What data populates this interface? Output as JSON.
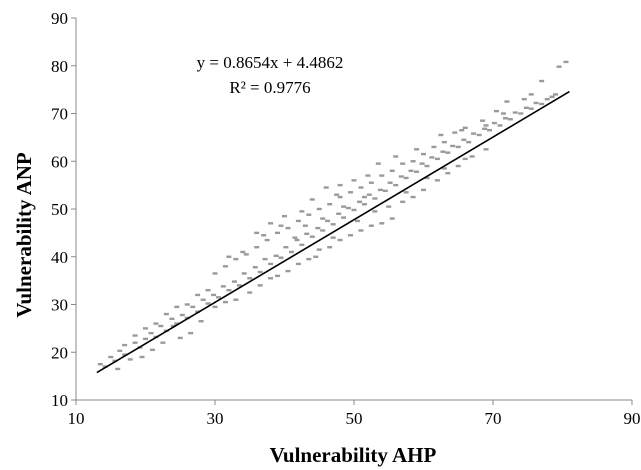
{
  "chart_data": {
    "type": "scatter",
    "title": "",
    "xlabel": "Vulnerability AHP",
    "ylabel": "Vulnerability ANP",
    "xlim": [
      10,
      90
    ],
    "ylim": [
      10,
      90
    ],
    "x_ticks": [
      10,
      30,
      50,
      70,
      90
    ],
    "y_ticks": [
      10,
      20,
      30,
      40,
      50,
      60,
      70,
      80,
      90
    ],
    "x_tick_labels": [
      "10",
      "30",
      "50",
      "70",
      "90"
    ],
    "y_tick_labels": [
      "10",
      "20",
      "30",
      "40",
      "50",
      "60",
      "70",
      "80",
      "90"
    ],
    "grid": false,
    "legend": "none",
    "point_color": "#9a9a9a",
    "trendline_color": "#000000",
    "trendline": {
      "slope": 0.8654,
      "intercept": 4.4862,
      "x_range": [
        13,
        81
      ]
    },
    "annotations": [
      "y = 0.8654x + 4.4862",
      "R² = 0.9776"
    ],
    "series": [
      {
        "points": [
          [
            13.5,
            17.5
          ],
          [
            14.2,
            17.0
          ],
          [
            15.0,
            19.0
          ],
          [
            15.6,
            18.2
          ],
          [
            16.3,
            20.3
          ],
          [
            17.0,
            19.5
          ],
          [
            17.8,
            18.5
          ],
          [
            18.5,
            22.0
          ],
          [
            19.2,
            21.0
          ],
          [
            20.0,
            22.8
          ],
          [
            20.8,
            24.0
          ],
          [
            21.5,
            23.2
          ],
          [
            22.2,
            25.5
          ],
          [
            23.0,
            24.5
          ],
          [
            23.8,
            27.0
          ],
          [
            24.5,
            26.0
          ],
          [
            25.3,
            27.8
          ],
          [
            26.0,
            27.2
          ],
          [
            26.8,
            29.5
          ],
          [
            27.5,
            28.5
          ],
          [
            28.3,
            31.0
          ],
          [
            29.0,
            30.2
          ],
          [
            29.8,
            32.0
          ],
          [
            30.5,
            31.5
          ],
          [
            31.2,
            33.8
          ],
          [
            32.0,
            33.0
          ],
          [
            32.8,
            34.8
          ],
          [
            33.5,
            34.0
          ],
          [
            34.2,
            36.5
          ],
          [
            35.0,
            35.5
          ],
          [
            35.8,
            37.8
          ],
          [
            36.5,
            36.8
          ],
          [
            37.2,
            39.5
          ],
          [
            38.0,
            38.5
          ],
          [
            38.8,
            40.2
          ],
          [
            39.5,
            39.8
          ],
          [
            40.2,
            42.0
          ],
          [
            41.0,
            41.0
          ],
          [
            41.8,
            43.5
          ],
          [
            42.5,
            42.5
          ],
          [
            43.2,
            44.8
          ],
          [
            44.0,
            44.2
          ],
          [
            44.8,
            46.0
          ],
          [
            45.5,
            45.5
          ],
          [
            46.2,
            47.5
          ],
          [
            47.0,
            46.8
          ],
          [
            47.8,
            49.0
          ],
          [
            48.5,
            48.2
          ],
          [
            49.2,
            50.2
          ],
          [
            50.0,
            49.8
          ],
          [
            50.8,
            51.5
          ],
          [
            51.5,
            51.0
          ],
          [
            52.2,
            53.0
          ],
          [
            53.0,
            52.2
          ],
          [
            53.8,
            54.0
          ],
          [
            54.5,
            53.8
          ],
          [
            55.2,
            55.5
          ],
          [
            56.0,
            55.0
          ],
          [
            56.8,
            56.8
          ],
          [
            57.5,
            56.5
          ],
          [
            58.2,
            58.0
          ],
          [
            59.0,
            57.8
          ],
          [
            59.8,
            59.5
          ],
          [
            60.5,
            59.0
          ],
          [
            61.2,
            60.8
          ],
          [
            62.0,
            60.5
          ],
          [
            62.8,
            62.0
          ],
          [
            63.5,
            61.8
          ],
          [
            64.2,
            63.2
          ],
          [
            65.0,
            63.0
          ],
          [
            65.8,
            64.5
          ],
          [
            66.5,
            64.0
          ],
          [
            67.2,
            65.8
          ],
          [
            68.0,
            65.5
          ],
          [
            68.8,
            66.8
          ],
          [
            69.5,
            66.5
          ],
          [
            70.2,
            68.0
          ],
          [
            71.0,
            67.5
          ],
          [
            71.8,
            69.0
          ],
          [
            72.5,
            68.8
          ],
          [
            73.2,
            70.2
          ],
          [
            74.0,
            70.0
          ],
          [
            74.8,
            71.2
          ],
          [
            75.5,
            71.0
          ],
          [
            76.2,
            72.2
          ],
          [
            77.0,
            72.0
          ],
          [
            77.8,
            73.0
          ],
          [
            78.5,
            73.5
          ],
          [
            79.0,
            74.0
          ],
          [
            80.5,
            80.8
          ],
          [
            79.5,
            79.8
          ],
          [
            77.0,
            76.8
          ],
          [
            75.5,
            74.0
          ],
          [
            72.0,
            72.5
          ],
          [
            70.5,
            70.5
          ],
          [
            68.5,
            68.5
          ],
          [
            66.0,
            67.0
          ],
          [
            64.5,
            66.0
          ],
          [
            63.0,
            64.0
          ],
          [
            61.5,
            63.0
          ],
          [
            60.0,
            61.5
          ],
          [
            58.5,
            60.0
          ],
          [
            57.0,
            59.5
          ],
          [
            55.5,
            58.0
          ],
          [
            54.0,
            57.0
          ],
          [
            52.5,
            55.5
          ],
          [
            51.0,
            54.5
          ],
          [
            49.5,
            53.5
          ],
          [
            48.0,
            52.5
          ],
          [
            46.5,
            51.0
          ],
          [
            45.0,
            50.0
          ],
          [
            43.5,
            48.8
          ],
          [
            42.0,
            47.5
          ],
          [
            40.5,
            46.0
          ],
          [
            39.0,
            45.0
          ],
          [
            37.5,
            43.5
          ],
          [
            36.0,
            42.0
          ],
          [
            34.5,
            40.5
          ],
          [
            33.0,
            39.5
          ],
          [
            31.5,
            38.0
          ],
          [
            30.0,
            36.5
          ],
          [
            29.0,
            33.0
          ],
          [
            27.5,
            32.0
          ],
          [
            26.0,
            30.0
          ],
          [
            24.5,
            29.5
          ],
          [
            23.0,
            28.0
          ],
          [
            21.5,
            26.0
          ],
          [
            20.0,
            25.0
          ],
          [
            18.5,
            23.5
          ],
          [
            17.0,
            21.5
          ],
          [
            39.0,
            36.0
          ],
          [
            40.5,
            37.0
          ],
          [
            42.0,
            38.5
          ],
          [
            43.5,
            39.5
          ],
          [
            45.0,
            41.5
          ],
          [
            46.5,
            42.0
          ],
          [
            48.0,
            43.5
          ],
          [
            49.5,
            44.5
          ],
          [
            51.0,
            45.5
          ],
          [
            52.5,
            46.5
          ],
          [
            54.0,
            47.0
          ],
          [
            55.5,
            48.0
          ],
          [
            57.0,
            51.5
          ],
          [
            58.5,
            52.5
          ],
          [
            60.0,
            54.0
          ],
          [
            62.0,
            56.0
          ],
          [
            63.5,
            57.5
          ],
          [
            65.0,
            59.0
          ],
          [
            67.0,
            61.0
          ],
          [
            69.0,
            62.5
          ],
          [
            44.0,
            52.0
          ],
          [
            46.0,
            54.5
          ],
          [
            48.0,
            55.0
          ],
          [
            50.0,
            56.0
          ],
          [
            52.0,
            57.0
          ],
          [
            36.0,
            45.0
          ],
          [
            38.0,
            47.0
          ],
          [
            40.0,
            48.5
          ],
          [
            34.0,
            41.0
          ],
          [
            32.0,
            40.0
          ],
          [
            30.0,
            29.5
          ],
          [
            31.5,
            30.5
          ],
          [
            33.0,
            31.0
          ],
          [
            35.0,
            32.5
          ],
          [
            36.5,
            34.0
          ],
          [
            38.0,
            35.5
          ],
          [
            37.0,
            44.5
          ],
          [
            39.5,
            46.5
          ],
          [
            42.5,
            49.5
          ],
          [
            47.5,
            53.0
          ],
          [
            53.5,
            59.5
          ],
          [
            56.0,
            61.0
          ],
          [
            59.0,
            62.5
          ],
          [
            62.5,
            65.5
          ],
          [
            65.5,
            66.5
          ],
          [
            69.0,
            67.5
          ],
          [
            71.5,
            70.0
          ],
          [
            74.5,
            73.0
          ],
          [
            26.5,
            24.0
          ],
          [
            28.0,
            26.5
          ],
          [
            24.0,
            25.5
          ],
          [
            22.5,
            22.0
          ],
          [
            19.5,
            19.0
          ],
          [
            16.0,
            16.5
          ],
          [
            21.0,
            20.5
          ],
          [
            25.0,
            23.0
          ],
          [
            44.5,
            40.0
          ],
          [
            47.0,
            44.0
          ],
          [
            50.5,
            47.5
          ],
          [
            53.0,
            49.5
          ],
          [
            55.0,
            50.5
          ],
          [
            57.5,
            53.5
          ],
          [
            60.5,
            56.5
          ],
          [
            63.0,
            58.5
          ],
          [
            66.0,
            60.5
          ],
          [
            41.5,
            44.0
          ],
          [
            43.0,
            46.5
          ],
          [
            45.5,
            48.0
          ],
          [
            48.5,
            50.5
          ],
          [
            51.5,
            52.5
          ]
        ]
      }
    ]
  }
}
